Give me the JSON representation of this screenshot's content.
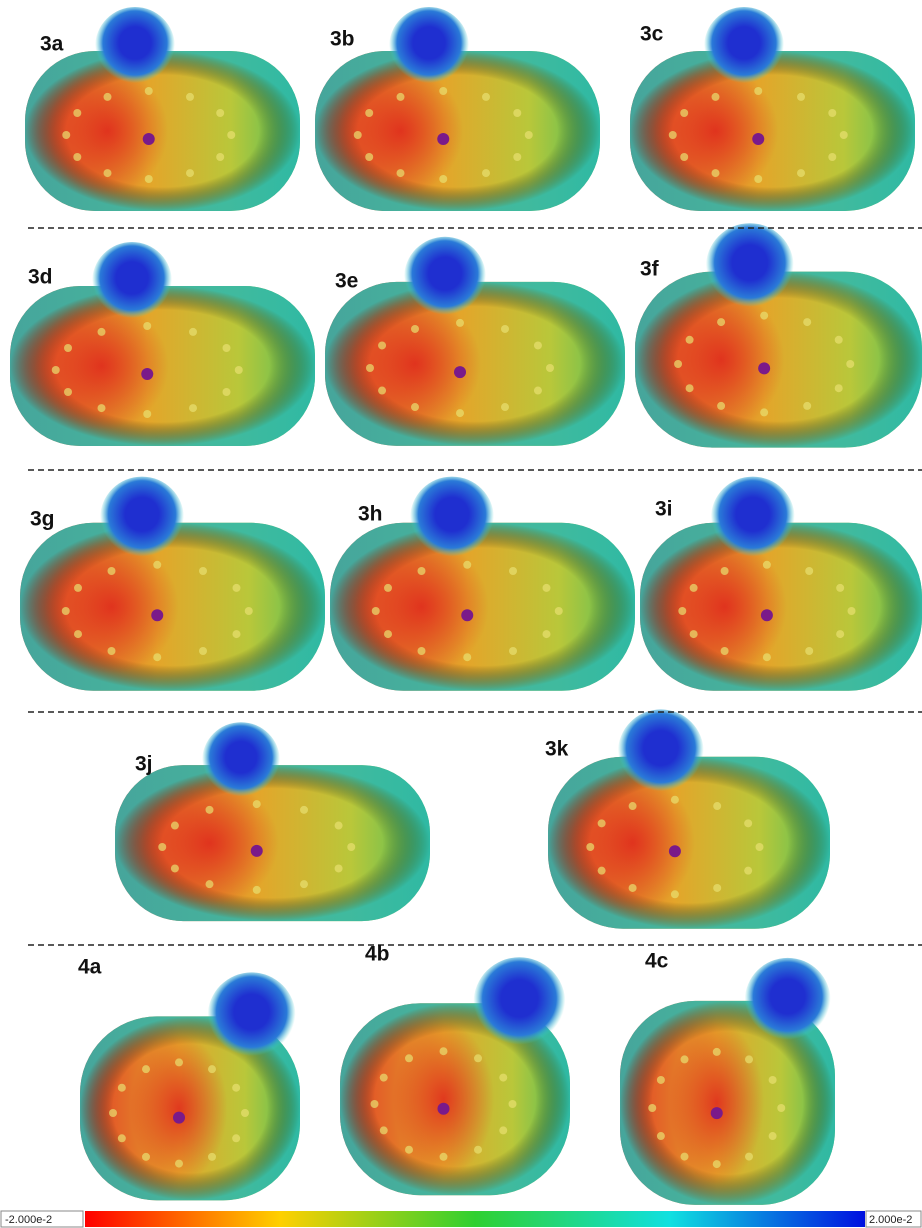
{
  "panels": [
    {
      "label": "3a"
    },
    {
      "label": "3b"
    },
    {
      "label": "3c"
    },
    {
      "label": "3d"
    },
    {
      "label": "3e"
    },
    {
      "label": "3f"
    },
    {
      "label": "3g"
    },
    {
      "label": "3h"
    },
    {
      "label": "3i"
    },
    {
      "label": "3j"
    },
    {
      "label": "3k"
    },
    {
      "label": "4a"
    },
    {
      "label": "4b"
    },
    {
      "label": "4c"
    }
  ],
  "colorbar": {
    "min_label": "-2.000e-2",
    "max_label": "2.000e-2"
  }
}
